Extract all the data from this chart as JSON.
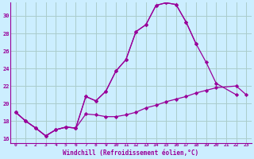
{
  "xlabel": "Windchill (Refroidissement éolien,°C)",
  "bg_color": "#cceeff",
  "grid_color": "#aacccc",
  "line_color": "#990099",
  "xlim": [
    -0.5,
    23.5
  ],
  "ylim": [
    15.5,
    31.5
  ],
  "xticks": [
    0,
    1,
    2,
    3,
    4,
    5,
    6,
    7,
    8,
    9,
    10,
    11,
    12,
    13,
    14,
    15,
    16,
    17,
    18,
    19,
    20,
    21,
    22,
    23
  ],
  "yticks": [
    16,
    18,
    20,
    22,
    24,
    26,
    28,
    30
  ],
  "series": [
    {
      "x": [
        0,
        1,
        2,
        3,
        4,
        5,
        6,
        7,
        8,
        9,
        10,
        11,
        12,
        13,
        14,
        15,
        16,
        17,
        18
      ],
      "y": [
        19.0,
        18.0,
        17.2,
        16.3,
        17.0,
        17.3,
        17.2,
        20.8,
        20.3,
        21.4,
        23.7,
        25.0,
        28.2,
        29.0,
        31.2,
        31.5,
        31.3,
        29.3,
        26.8
      ]
    },
    {
      "x": [
        0,
        1,
        2,
        3,
        4,
        5,
        6,
        7,
        8,
        9,
        10,
        11,
        12,
        13,
        14,
        15,
        16,
        17,
        18,
        19,
        20,
        22
      ],
      "y": [
        19.0,
        18.0,
        17.2,
        16.3,
        17.0,
        17.3,
        17.2,
        20.8,
        20.3,
        21.4,
        23.7,
        25.0,
        28.2,
        29.0,
        31.2,
        31.5,
        31.3,
        29.3,
        26.8,
        24.7,
        22.3,
        21.0
      ]
    },
    {
      "x": [
        0,
        1,
        2,
        3,
        4,
        5,
        6,
        7,
        8,
        9,
        10,
        11,
        12,
        13,
        14,
        15,
        16,
        17,
        18,
        19,
        20,
        22,
        23
      ],
      "y": [
        19.0,
        18.0,
        17.2,
        16.3,
        17.0,
        17.3,
        17.2,
        18.8,
        18.7,
        18.5,
        18.5,
        18.7,
        19.0,
        19.5,
        19.8,
        20.2,
        20.5,
        20.8,
        21.2,
        21.5,
        21.8,
        22.0,
        21.0
      ]
    }
  ]
}
